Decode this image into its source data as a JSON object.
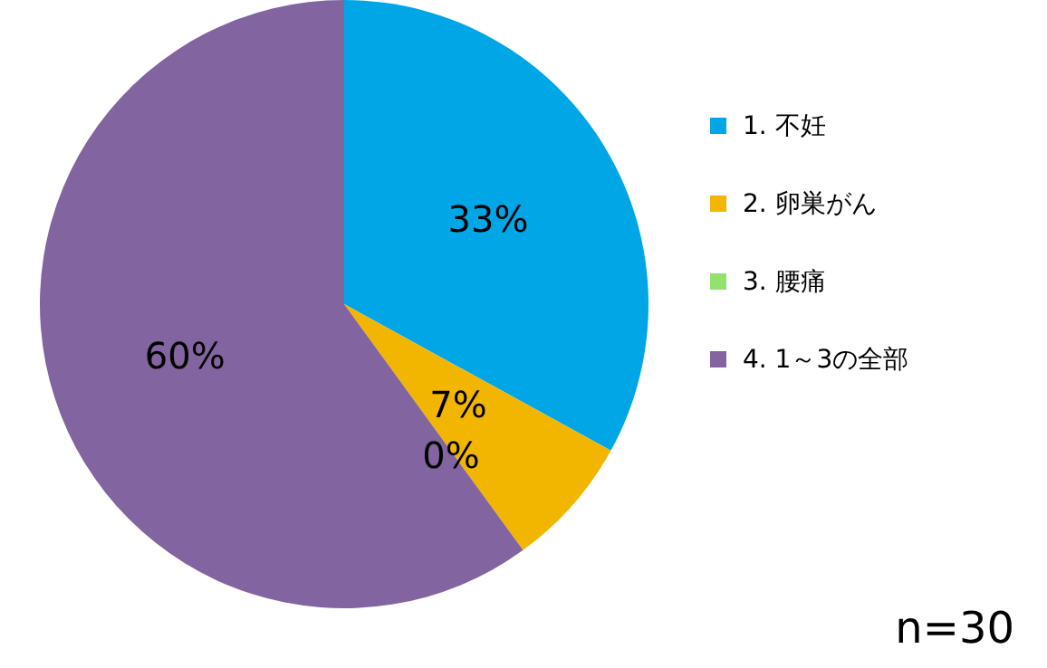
{
  "chart_data": {
    "type": "pie",
    "categories": [
      "1. 不妊",
      "2. 卵巣がん",
      "3. 腰痛",
      "4. 1～3の全部"
    ],
    "values": [
      33,
      7,
      0,
      60
    ],
    "colors": [
      "#00a6e6",
      "#f2b600",
      "#92e26c",
      "#8264a0"
    ],
    "value_labels": [
      "33%",
      "7%",
      "0%",
      "60%"
    ],
    "legend": "right",
    "annotations": [
      "n=30"
    ]
  }
}
